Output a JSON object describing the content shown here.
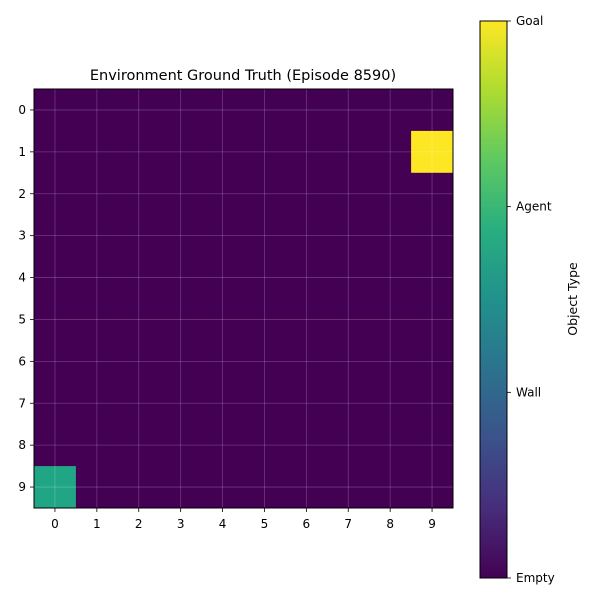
{
  "chart_data": {
    "type": "heatmap",
    "title": "Environment Ground Truth (Episode 8590)",
    "xlabel": "",
    "ylabel": "",
    "rows": 10,
    "cols": 10,
    "x_ticks": [
      "0",
      "1",
      "2",
      "3",
      "4",
      "5",
      "6",
      "7",
      "8",
      "9"
    ],
    "y_ticks": [
      "0",
      "1",
      "2",
      "3",
      "4",
      "5",
      "6",
      "7",
      "8",
      "9"
    ],
    "grid": true,
    "values": [
      [
        0,
        0,
        0,
        0,
        0,
        0,
        0,
        0,
        0,
        0
      ],
      [
        0,
        0,
        0,
        0,
        0,
        0,
        0,
        0,
        0,
        3
      ],
      [
        0,
        0,
        0,
        0,
        0,
        0,
        0,
        0,
        0,
        0
      ],
      [
        0,
        0,
        0,
        0,
        0,
        0,
        0,
        0,
        0,
        0
      ],
      [
        0,
        0,
        0,
        0,
        0,
        0,
        0,
        0,
        0,
        0
      ],
      [
        0,
        0,
        0,
        0,
        0,
        0,
        0,
        0,
        0,
        0
      ],
      [
        0,
        0,
        0,
        0,
        0,
        0,
        0,
        0,
        0,
        0
      ],
      [
        0,
        0,
        0,
        0,
        0,
        0,
        0,
        0,
        0,
        0
      ],
      [
        0,
        0,
        0,
        0,
        0,
        0,
        0,
        0,
        0,
        0
      ],
      [
        2,
        0,
        0,
        0,
        0,
        0,
        0,
        0,
        0,
        0
      ]
    ],
    "colorbar": {
      "label": "Object Type",
      "colormap": "viridis",
      "vmin": 0,
      "vmax": 3,
      "ticks": [
        {
          "value": 0,
          "label": "Empty"
        },
        {
          "value": 1,
          "label": "Wall"
        },
        {
          "value": 2,
          "label": "Agent"
        },
        {
          "value": 3,
          "label": "Goal"
        }
      ]
    },
    "colors": {
      "0": "#440154",
      "1": "#31688e",
      "2": "#21a685",
      "3": "#fde725"
    }
  }
}
